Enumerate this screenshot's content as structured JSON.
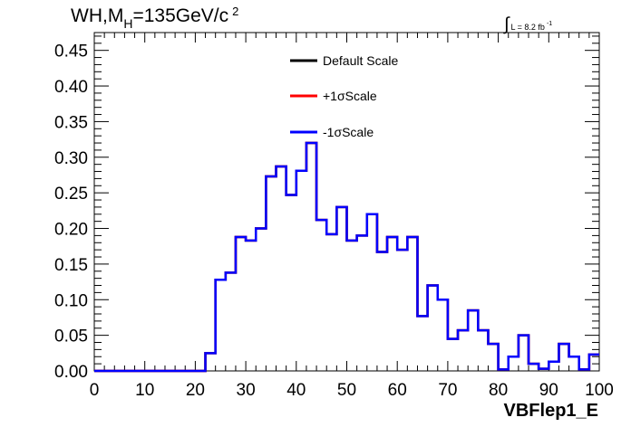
{
  "chart_data": {
    "type": "line",
    "title": {
      "prefix": "WH,M",
      "subscript": "H",
      "value": "=135GeV/c",
      "superscript": "2"
    },
    "luminosity": {
      "integral": "∫",
      "text": "L = 8.2 fb",
      "superscript": "-1"
    },
    "xlabel": "VBFlep1_E",
    "ylabel": "",
    "xlim": [
      0,
      100
    ],
    "ylim": [
      0,
      0.475
    ],
    "x_ticks": [
      "0",
      "10",
      "20",
      "30",
      "40",
      "50",
      "60",
      "70",
      "80",
      "90",
      "100"
    ],
    "y_ticks": [
      "0.00",
      "0.05",
      "0.10",
      "0.15",
      "0.20",
      "0.25",
      "0.30",
      "0.35",
      "0.40",
      "0.45"
    ],
    "legend_position": "top-center",
    "grid": false,
    "bin_edges": [
      0,
      2,
      4,
      6,
      8,
      10,
      12,
      14,
      16,
      18,
      20,
      22,
      24,
      26,
      28,
      30,
      32,
      34,
      36,
      38,
      40,
      42,
      44,
      46,
      48,
      50,
      52,
      54,
      56,
      58,
      60,
      62,
      64,
      66,
      68,
      70,
      72,
      74,
      76,
      78,
      80,
      82,
      84,
      86,
      88,
      90,
      92,
      94,
      96,
      98,
      100
    ],
    "series": [
      {
        "name": "Default Scale",
        "color": "#000000",
        "values": [
          0,
          0,
          0,
          0,
          0,
          0,
          0,
          0,
          0,
          0,
          0,
          0.025,
          0.128,
          0.138,
          0.188,
          0.183,
          0.2,
          0.273,
          0.287,
          0.247,
          0.281,
          0.32,
          0.212,
          0.192,
          0.23,
          0.183,
          0.19,
          0.22,
          0.167,
          0.188,
          0.17,
          0.188,
          0.077,
          0.12,
          0.1,
          0.045,
          0.057,
          0.085,
          0.057,
          0.038,
          0.002,
          0.02,
          0.05,
          0.01,
          0.003,
          0.013,
          0.038,
          0.02,
          0.002,
          0.023
        ]
      },
      {
        "name": "+1σScale",
        "color": "#ff0000",
        "values": [
          0,
          0,
          0,
          0,
          0,
          0,
          0,
          0,
          0,
          0,
          0,
          0.025,
          0.128,
          0.138,
          0.188,
          0.183,
          0.2,
          0.273,
          0.287,
          0.247,
          0.281,
          0.32,
          0.212,
          0.192,
          0.23,
          0.183,
          0.19,
          0.22,
          0.167,
          0.188,
          0.17,
          0.188,
          0.077,
          0.12,
          0.1,
          0.045,
          0.057,
          0.085,
          0.057,
          0.038,
          0.002,
          0.02,
          0.05,
          0.01,
          0.003,
          0.013,
          0.038,
          0.02,
          0.002,
          0.023
        ]
      },
      {
        "name": "-1σScale",
        "color": "#0000ff",
        "values": [
          0,
          0,
          0,
          0,
          0,
          0,
          0,
          0,
          0,
          0,
          0,
          0.025,
          0.128,
          0.138,
          0.188,
          0.183,
          0.2,
          0.273,
          0.287,
          0.247,
          0.281,
          0.32,
          0.212,
          0.192,
          0.23,
          0.183,
          0.19,
          0.22,
          0.167,
          0.188,
          0.17,
          0.188,
          0.077,
          0.12,
          0.1,
          0.045,
          0.057,
          0.085,
          0.057,
          0.038,
          0.002,
          0.02,
          0.05,
          0.01,
          0.003,
          0.013,
          0.038,
          0.02,
          0.002,
          0.023
        ]
      }
    ]
  }
}
